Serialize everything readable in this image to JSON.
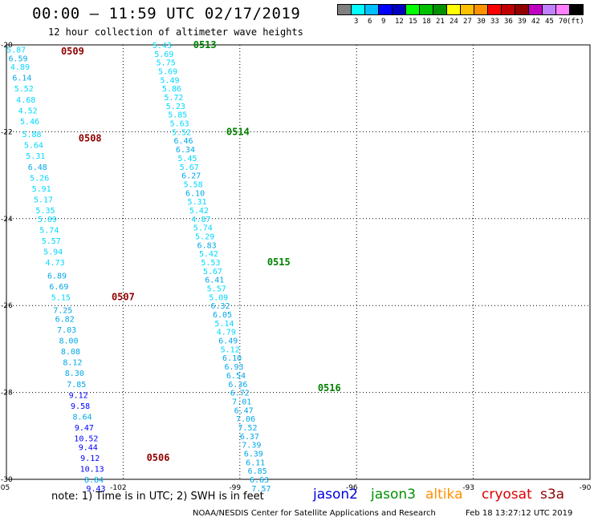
{
  "header": {
    "title": "00:00 – 11:59 UTC 02/17/2019",
    "subtitle": "12 hour collection of altimeter wave heights"
  },
  "legend": {
    "unit": "(ft)",
    "colors": [
      "#808080",
      "#00ffff",
      "#00bfff",
      "#0000ff",
      "#0000c0",
      "#00ff00",
      "#00c000",
      "#009000",
      "#ffff00",
      "#ffc000",
      "#ff9000",
      "#ff0000",
      "#c00000",
      "#900000",
      "#c000c0",
      "#c080ff",
      "#ff80ff",
      "#000000"
    ],
    "labels": [
      "3",
      "6",
      "9",
      "12",
      "15",
      "18",
      "21",
      "24",
      "27",
      "30",
      "33",
      "36",
      "39",
      "42",
      "45",
      "70"
    ]
  },
  "map": {
    "lon_ticks": [
      "-105",
      "-102",
      "-99",
      "-96",
      "-93",
      "-90"
    ],
    "lat_ticks": [
      "-20",
      "-22",
      "-24",
      "-26",
      "-28",
      "-30"
    ]
  },
  "chart_data": {
    "type": "scatter",
    "xlim": [
      -105,
      -90
    ],
    "ylim": [
      -30,
      -20
    ],
    "grid": true,
    "tracks": [
      {
        "points": [
          {
            "lon": -104.75,
            "lat": -20.1,
            "v": "5.87"
          },
          {
            "lon": -104.7,
            "lat": -20.3,
            "v": "6.59"
          },
          {
            "lon": -104.65,
            "lat": -20.5,
            "v": "4.89"
          },
          {
            "lon": -104.6,
            "lat": -20.75,
            "v": "6.14"
          },
          {
            "lon": -104.55,
            "lat": -21.0,
            "v": "5.52"
          },
          {
            "lon": -104.5,
            "lat": -21.25,
            "v": "4.68"
          },
          {
            "lon": -104.45,
            "lat": -21.5,
            "v": "4.52"
          },
          {
            "lon": -104.4,
            "lat": -21.75,
            "v": "5.46"
          },
          {
            "lon": -104.35,
            "lat": -22.05,
            "v": "5.88"
          },
          {
            "lon": -104.3,
            "lat": -22.3,
            "v": "5.64"
          },
          {
            "lon": -104.25,
            "lat": -22.55,
            "v": "5.31"
          },
          {
            "lon": -104.2,
            "lat": -22.8,
            "v": "6.48"
          },
          {
            "lon": -104.15,
            "lat": -23.05,
            "v": "5.26"
          },
          {
            "lon": -104.1,
            "lat": -23.3,
            "v": "5.91"
          },
          {
            "lon": -104.05,
            "lat": -23.55,
            "v": "5.17"
          },
          {
            "lon": -104.0,
            "lat": -23.8,
            "v": "5.35"
          },
          {
            "lon": -103.95,
            "lat": -24.0,
            "v": "5.09"
          },
          {
            "lon": -103.9,
            "lat": -24.25,
            "v": "5.74"
          },
          {
            "lon": -103.85,
            "lat": -24.5,
            "v": "5.57"
          },
          {
            "lon": -103.8,
            "lat": -24.75,
            "v": "5.94"
          },
          {
            "lon": -103.75,
            "lat": -25.0,
            "v": "4.73"
          },
          {
            "lon": -103.7,
            "lat": -25.3,
            "v": "6.89"
          },
          {
            "lon": -103.65,
            "lat": -25.55,
            "v": "6.69"
          },
          {
            "lon": -103.6,
            "lat": -25.8,
            "v": "5.15"
          },
          {
            "lon": -103.55,
            "lat": -26.1,
            "v": "7.25"
          },
          {
            "lon": -103.5,
            "lat": -26.3,
            "v": "6.82"
          },
          {
            "lon": -103.45,
            "lat": -26.55,
            "v": "7.03"
          },
          {
            "lon": -103.4,
            "lat": -26.8,
            "v": "8.00"
          },
          {
            "lon": -103.35,
            "lat": -27.05,
            "v": "8.08"
          },
          {
            "lon": -103.3,
            "lat": -27.3,
            "v": "8.12"
          },
          {
            "lon": -103.25,
            "lat": -27.55,
            "v": "8.30"
          },
          {
            "lon": -103.2,
            "lat": -27.8,
            "v": "7.85"
          },
          {
            "lon": -103.15,
            "lat": -28.05,
            "v": "9.12"
          },
          {
            "lon": -103.1,
            "lat": -28.3,
            "v": "9.58"
          },
          {
            "lon": -103.05,
            "lat": -28.55,
            "v": "8.64"
          },
          {
            "lon": -103.0,
            "lat": -28.8,
            "v": "9.47"
          },
          {
            "lon": -102.95,
            "lat": -29.05,
            "v": "10.52"
          },
          {
            "lon": -102.9,
            "lat": -29.25,
            "v": "9.44"
          },
          {
            "lon": -102.85,
            "lat": -29.5,
            "v": "9.12"
          },
          {
            "lon": -102.8,
            "lat": -29.75,
            "v": "10.13"
          },
          {
            "lon": -102.75,
            "lat": -30.0,
            "v": "8.84"
          },
          {
            "lon": -102.7,
            "lat": -30.2,
            "v": "9.43"
          }
        ],
        "labels": [
          {
            "text": "0509",
            "lon": -103.3,
            "lat": -20.15
          },
          {
            "text": "0508",
            "lon": -102.85,
            "lat": -22.15
          },
          {
            "text": "0507",
            "lon": -102.0,
            "lat": -25.8
          },
          {
            "text": "0506",
            "lon": -101.1,
            "lat": -29.5
          }
        ]
      },
      {
        "points": [
          {
            "lon": -101.0,
            "lat": -20.0,
            "v": "5.43"
          },
          {
            "lon": -100.95,
            "lat": -20.2,
            "v": "5.69"
          },
          {
            "lon": -100.9,
            "lat": -20.4,
            "v": "5.75"
          },
          {
            "lon": -100.85,
            "lat": -20.6,
            "v": "5.69"
          },
          {
            "lon": -100.8,
            "lat": -20.8,
            "v": "5.49"
          },
          {
            "lon": -100.75,
            "lat": -21.0,
            "v": "5.86"
          },
          {
            "lon": -100.7,
            "lat": -21.2,
            "v": "5.72"
          },
          {
            "lon": -100.65,
            "lat": -21.4,
            "v": "5.23"
          },
          {
            "lon": -100.6,
            "lat": -21.6,
            "v": "5.85"
          },
          {
            "lon": -100.55,
            "lat": -21.8,
            "v": "5.63"
          },
          {
            "lon": -100.5,
            "lat": -22.0,
            "v": "5.52"
          },
          {
            "lon": -100.45,
            "lat": -22.2,
            "v": "6.46"
          },
          {
            "lon": -100.4,
            "lat": -22.4,
            "v": "6.34"
          },
          {
            "lon": -100.35,
            "lat": -22.6,
            "v": "5.45"
          },
          {
            "lon": -100.3,
            "lat": -22.8,
            "v": "5.67"
          },
          {
            "lon": -100.25,
            "lat": -23.0,
            "v": "6.27"
          },
          {
            "lon": -100.2,
            "lat": -23.2,
            "v": "5.58"
          },
          {
            "lon": -100.15,
            "lat": -23.4,
            "v": "6.10"
          },
          {
            "lon": -100.1,
            "lat": -23.6,
            "v": "5.31"
          },
          {
            "lon": -100.05,
            "lat": -23.8,
            "v": "5.42"
          },
          {
            "lon": -100.0,
            "lat": -24.0,
            "v": "4.87"
          },
          {
            "lon": -99.95,
            "lat": -24.2,
            "v": "5.74"
          },
          {
            "lon": -99.9,
            "lat": -24.4,
            "v": "5.29"
          },
          {
            "lon": -99.85,
            "lat": -24.6,
            "v": "6.83"
          },
          {
            "lon": -99.8,
            "lat": -24.8,
            "v": "5.42"
          },
          {
            "lon": -99.75,
            "lat": -25.0,
            "v": "5.53"
          },
          {
            "lon": -99.7,
            "lat": -25.2,
            "v": "5.67"
          },
          {
            "lon": -99.65,
            "lat": -25.4,
            "v": "6.41"
          },
          {
            "lon": -99.6,
            "lat": -25.6,
            "v": "5.57"
          },
          {
            "lon": -99.55,
            "lat": -25.8,
            "v": "5.09"
          },
          {
            "lon": -99.5,
            "lat": -26.0,
            "v": "6.32"
          },
          {
            "lon": -99.45,
            "lat": -26.2,
            "v": "6.05"
          },
          {
            "lon": -99.4,
            "lat": -26.4,
            "v": "5.14"
          },
          {
            "lon": -99.35,
            "lat": -26.6,
            "v": "4.79"
          },
          {
            "lon": -99.3,
            "lat": -26.8,
            "v": "6.49"
          },
          {
            "lon": -99.25,
            "lat": -27.0,
            "v": "5.12"
          },
          {
            "lon": -99.2,
            "lat": -27.2,
            "v": "6.10"
          },
          {
            "lon": -99.15,
            "lat": -27.4,
            "v": "6.93"
          },
          {
            "lon": -99.1,
            "lat": -27.6,
            "v": "6.54"
          },
          {
            "lon": -99.05,
            "lat": -27.8,
            "v": "6.36"
          },
          {
            "lon": -99.0,
            "lat": -28.0,
            "v": "6.72"
          },
          {
            "lon": -98.95,
            "lat": -28.2,
            "v": "7.01"
          },
          {
            "lon": -98.9,
            "lat": -28.4,
            "v": "6.47"
          },
          {
            "lon": -98.85,
            "lat": -28.6,
            "v": "7.06"
          },
          {
            "lon": -98.8,
            "lat": -28.8,
            "v": "7.52"
          },
          {
            "lon": -98.75,
            "lat": -29.0,
            "v": "6.37"
          },
          {
            "lon": -98.7,
            "lat": -29.2,
            "v": "7.39"
          },
          {
            "lon": -98.65,
            "lat": -29.4,
            "v": "6.39"
          },
          {
            "lon": -98.6,
            "lat": -29.6,
            "v": "6.11"
          },
          {
            "lon": -98.55,
            "lat": -29.8,
            "v": "6.85"
          },
          {
            "lon": -98.5,
            "lat": -30.0,
            "v": "6.63"
          },
          {
            "lon": -98.45,
            "lat": -30.2,
            "v": "7.57"
          }
        ],
        "labels": [
          {
            "text": "0513",
            "lon": -99.9,
            "lat": -20.0
          },
          {
            "text": "0514",
            "lon": -99.05,
            "lat": -22.0
          },
          {
            "text": "0515",
            "lon": -98.0,
            "lat": -25.0
          },
          {
            "text": "0516",
            "lon": -96.7,
            "lat": -27.9
          }
        ]
      }
    ]
  },
  "footer": {
    "note": "note:  1) Time is in UTC;  2) SWH is in feet",
    "credit": "NOAA/NESDIS Center for Satellite Applications and Research",
    "generated": "Feb 18 13:27:12 UTC 2019",
    "satellites": [
      {
        "name": "jason2",
        "color": "#0000dd"
      },
      {
        "name": "jason3",
        "color": "#009000"
      },
      {
        "name": "altika",
        "color": "#ff9000"
      },
      {
        "name": "cryosat",
        "color": "#dd0000"
      },
      {
        "name": "s3a",
        "color": "#900000"
      }
    ]
  }
}
